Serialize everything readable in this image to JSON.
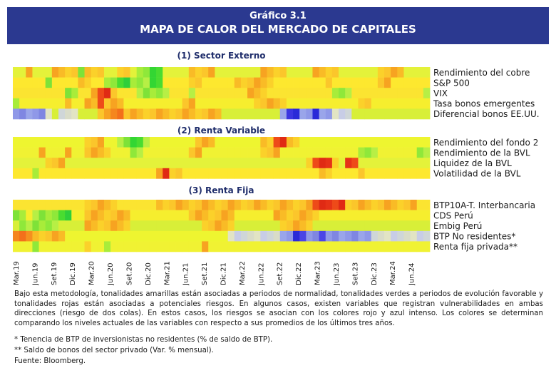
{
  "header": {
    "subtitle": "Gráfico 3.1",
    "title": "MAPA DE CALOR DEL MERCADO DE CAPITALES"
  },
  "sections": [
    {
      "title": "(1) Sector Externo",
      "rows": [
        "Rendimiento del cobre",
        "S&P 500",
        "VIX",
        "Tasa bonos emergentes",
        "Diferencial bonos EE.UU."
      ]
    },
    {
      "title": "(2) Renta Variable",
      "rows": [
        "Rendimiento del fondo 2",
        "Rendimiento de la BVL",
        "Liquidez de la BVL",
        "Volatilidad de la BVL"
      ]
    },
    {
      "title": "(3) Renta Fija",
      "rows": [
        "BTP10A-T. Interbancaria",
        "CDS Perú",
        "Embig Perú",
        "BTP No residentes*",
        "Renta fija privada**"
      ]
    }
  ],
  "x_labels": [
    "Mar.19",
    "Jun.19",
    "Set.19",
    "Dic.19",
    "Mar.20",
    "Jun.20",
    "Set.20",
    "Dic.20",
    "Mar.21",
    "Jun.21",
    "Set.21",
    "Dic.21",
    "Mar.22",
    "Jun.22",
    "Set.22",
    "Dic.22",
    "Mar.23",
    "Jun.23",
    "Set.23",
    "Dic.23",
    "Mar.24",
    "Jun.24"
  ],
  "notes": {
    "body": "Bajo esta metodología, tonalidades amarillas están asociadas a periodos de normalidad, tonalidades verdes a periodos de evolución favorable y tonalidades rojas están asociadas a potenciales riesgos. En algunos casos, existen variables que registran vulnerabilidades en ambas direcciones (riesgo de dos colas). En estos casos, los riesgos se asocian con los colores rojo y azul intenso. Los colores se determinan comparando los niveles actuales de las variables con respecto a sus promedios de los últimos tres años.",
    "footnote1": "* Tenencia de BTP de inversionistas no residentes (% de saldo de BTP).",
    "footnote2": "** Saldo de bonos del sector privado (Var. % mensual).",
    "source": "Fuente: Bloomberg."
  },
  "colors": {
    "header_bg": "#2b3990",
    "section_title": "#1f2d6b"
  },
  "chart_data": {
    "type": "heatmap",
    "scale": {
      "green": -1,
      "yellow": 0,
      "red": 1,
      "blue_two_tail": -1
    },
    "periods": 64,
    "matrix": {
      "Rendimiento del cobre": "yyoyyyoooogoooyyooyggGGyyyyooooyyyyyyyooooyyyyooooyyyyyyooooyyyy",
      "S&P 500": "yyyyygyyyyooyyggGGgggGGyyyyooyyyyyooooooyyyyyyyyoyyyyyyyooyyyyyy",
      "VIX": "yyyyyyyyggyyoRRoyyygggggyyygyyyyyyyyoooyyyyyyyyyygggyyyyyyyyyyyg",
      "Tasa bonos emergentes": "gyyyyyyyoyyooRoooyyyyyyyyyooyyyyyyyyyoooooyyyyyyyyyyyooyyyyyyyyy",
      "Diferencial bonos EE.UU.": "bbbbbpypppyyyoorroooooooooooooooyyyyyyyyybBBbbBbbpppyyyyyyyyyyyy",
      "Rendimiento del fondo 2": "yyyyyyyyyyyoooyyggGGgyyyyyyyoooyyyyyyyooRRooyyyyyyyyyyyyyyyyyyyy",
      "Rendimiento de la BVL": "yyyyoyyyoyyooooyyyggyyyyyyyooyyyyyyyyyoooyyyyyyyyyyyygggyyyyyygg",
      "Liquidez de la BVL": "yyyyyoooyyyyyyyyyyyyyyyyyyyyyyyyyyyyyyyyyyyyyoRRRoyRRyyyyyyyyyyy",
      "Volatilidad de la BVL": "yyygyyyyyyyyyyyyyyyyyyoRooyyyyyyyyyyyyyyyyyyyyyooyyyyoyyyyyyyyyy",
      "BTP10A-T. Interbancaria": "yyyyyyyyyyyoooooyyyyyyooooooooooooooooooooooooRRRRRoooooooooooyy",
      "CDS Perú": "ggyggggGGyyoooooooyyyyyyyyyoooooooyyyyyyoooooooyyyyyyyyyyyyyyyyy",
      "Embig Perú": "yggggggyyyyoooooooyyyyyyyyyyyoooooyyyyyyyoooooyyyyyyyyyyyyyyyyyy",
      "BTP No residentes*": "rrroooooyyyyyyyyyyyyyyyyyyyyyyyyyppppppppbbBBbbBbbbbbbbpppppppppp",
      "Renta fija privada**": "yyygyyyyyyyoyygyyyyyyyyyyyyyyoyyyyyyyyyyyyyyyyyyyyyyyyyyyyyyyyyy"
    }
  }
}
